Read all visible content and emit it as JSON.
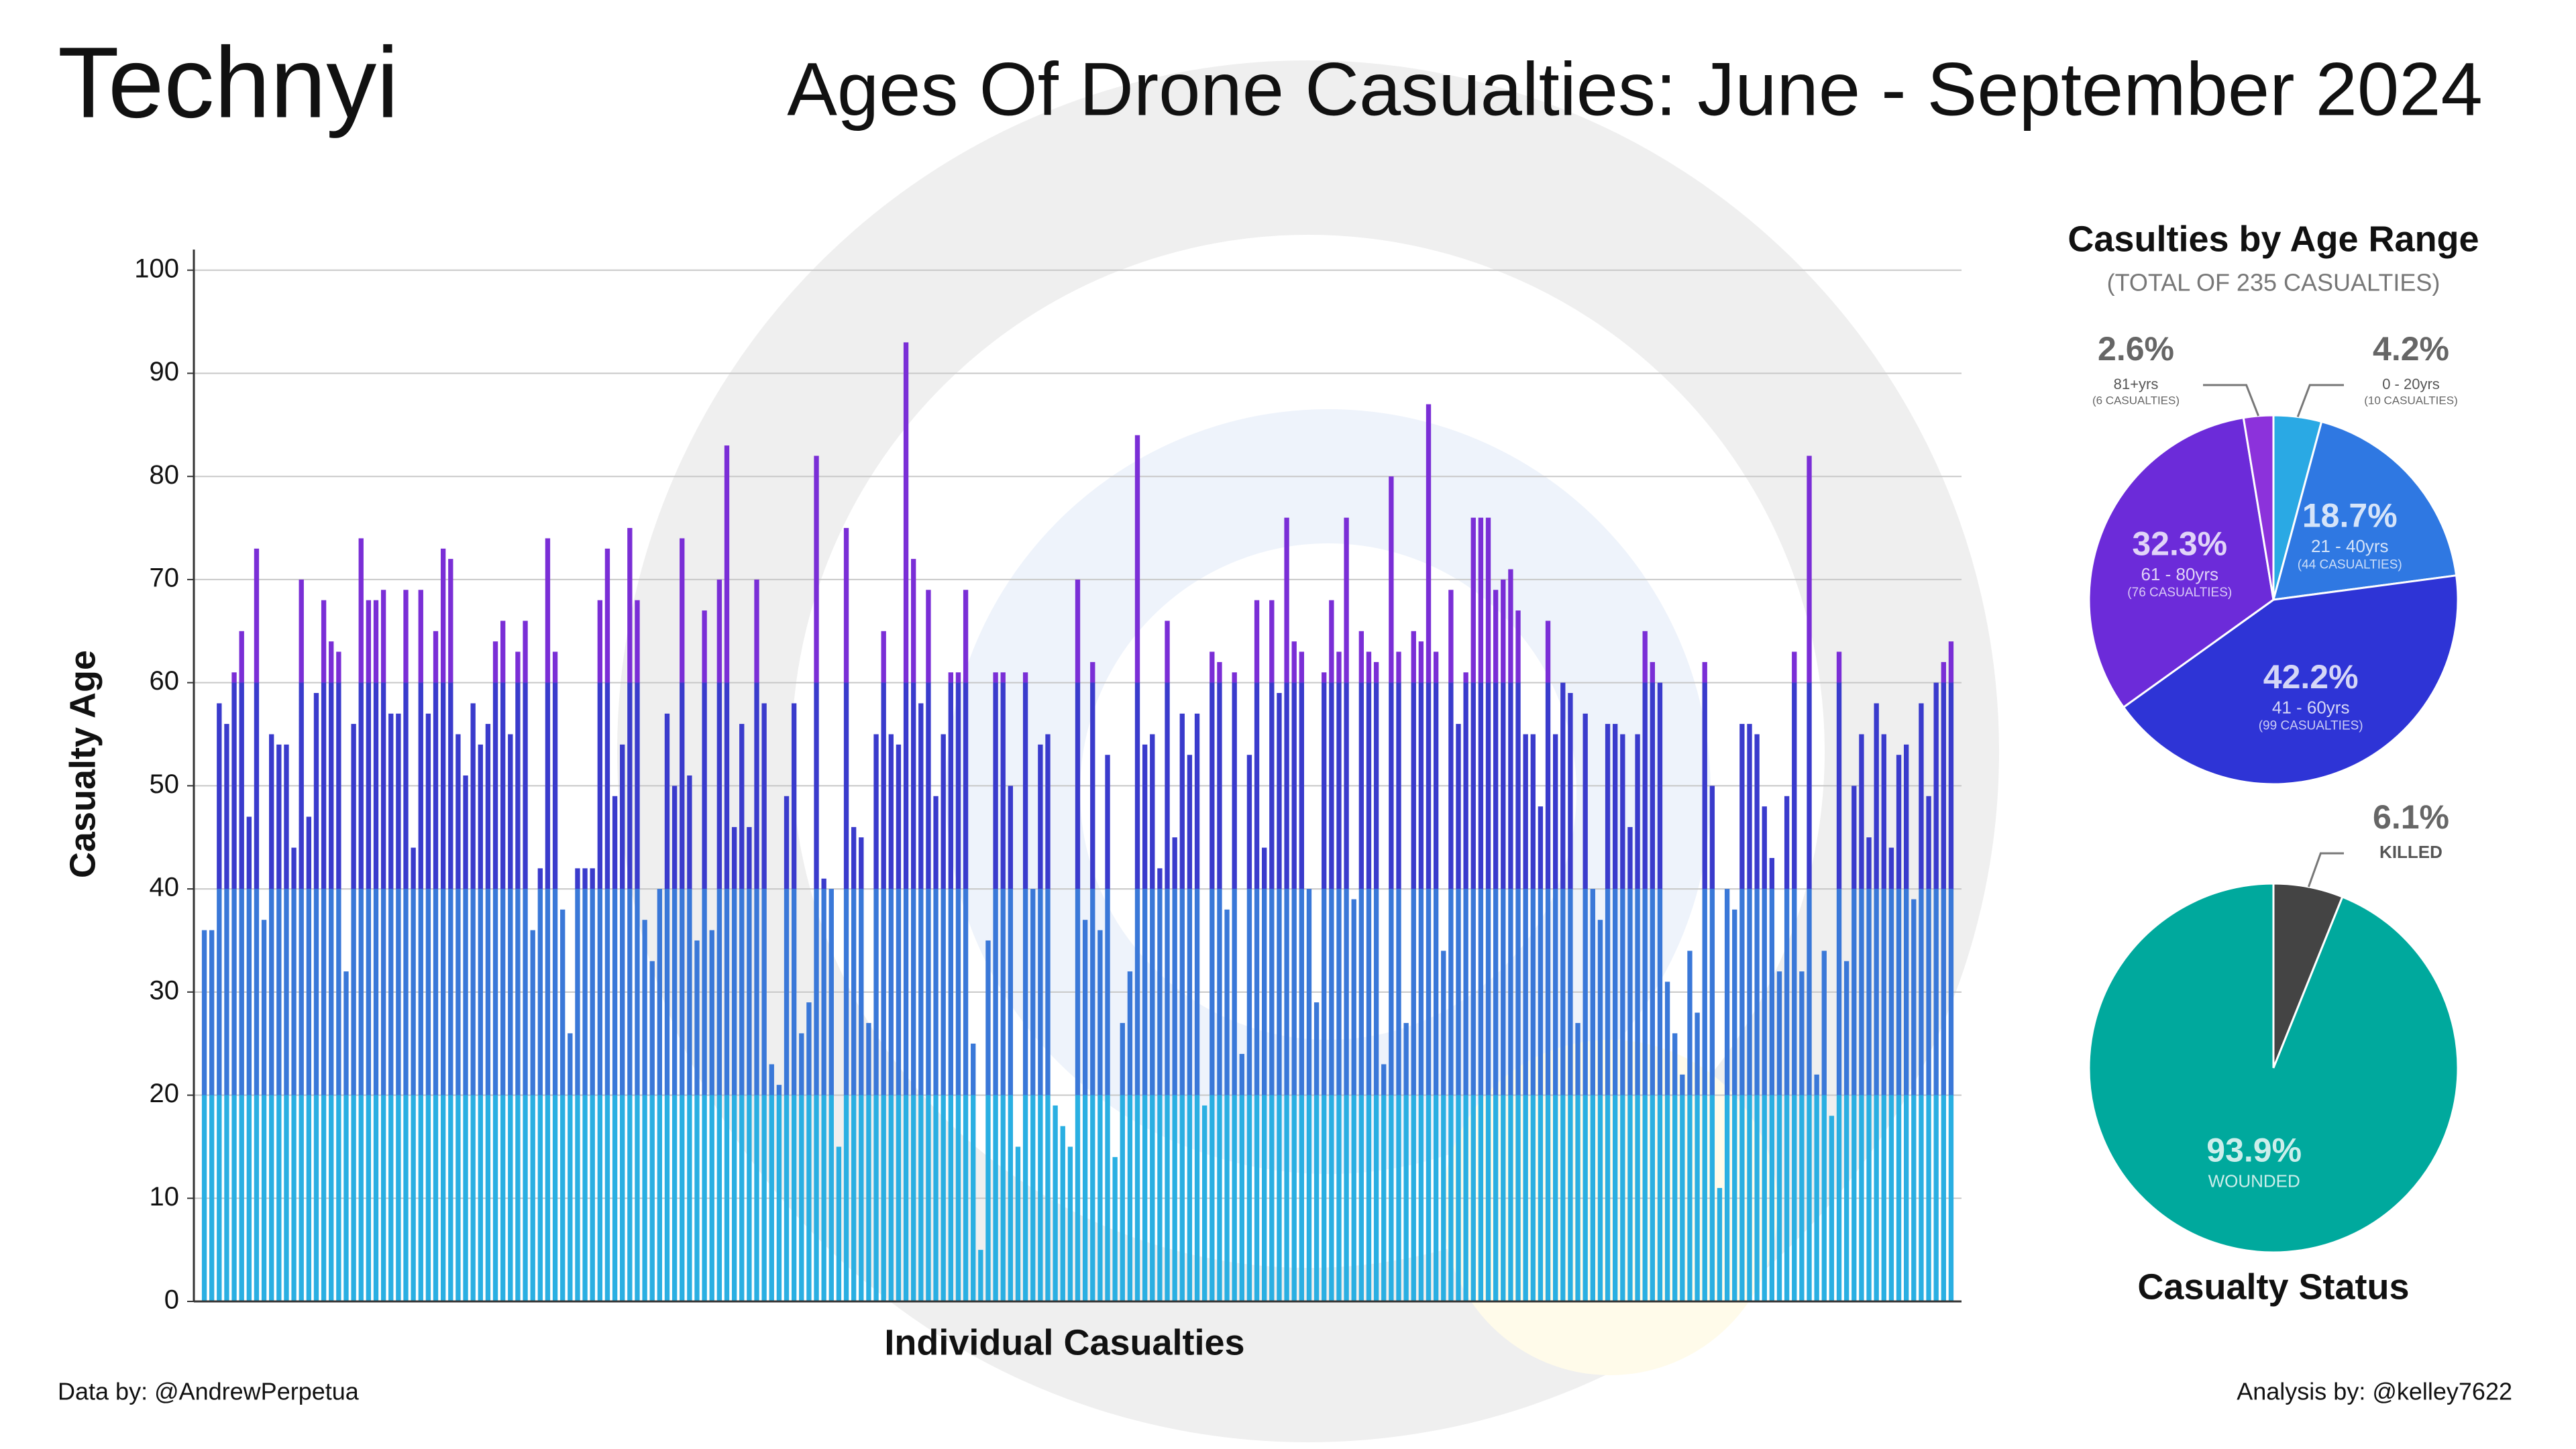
{
  "logo": "Technyi",
  "footer": {
    "left": "Data by: @AndrewPerpetua",
    "right": "Analysis by: @kelley7622"
  },
  "chart_data": [
    {
      "type": "bar",
      "title": "Ages Of Drone Casualties: June - September 2024",
      "ylabel": "Casualty Age",
      "xlabel": "Individual Casualties",
      "values": [
        36,
        36,
        58,
        56,
        61,
        65,
        47,
        73,
        37,
        55,
        54,
        54,
        44,
        70,
        47,
        59,
        68,
        64,
        63,
        32,
        56,
        74,
        68,
        68,
        69,
        57,
        57,
        69,
        44,
        69,
        57,
        65,
        73,
        72,
        55,
        51,
        58,
        54,
        56,
        64,
        66,
        55,
        63,
        66,
        36,
        42,
        74,
        63,
        38,
        26,
        42,
        42,
        42,
        68,
        73,
        49,
        54,
        75,
        68,
        37,
        33,
        40,
        57,
        50,
        74,
        51,
        35,
        67,
        36,
        70,
        83,
        46,
        56,
        46,
        70,
        58,
        23,
        21,
        49,
        58,
        26,
        29,
        82,
        41,
        40,
        15,
        75,
        46,
        45,
        27,
        55,
        65,
        55,
        54,
        93,
        72,
        58,
        69,
        49,
        55,
        61,
        61,
        69,
        25,
        5,
        35,
        61,
        61,
        50,
        15,
        61,
        40,
        54,
        55,
        19,
        17,
        15,
        70,
        37,
        62,
        36,
        53,
        14,
        27,
        32,
        84,
        54,
        55,
        42,
        66,
        45,
        57,
        53,
        57,
        19,
        63,
        62,
        38,
        61,
        24,
        53,
        68,
        44,
        68,
        59,
        76,
        64,
        63,
        40,
        29,
        61,
        68,
        63,
        76,
        39,
        65,
        63,
        62,
        23,
        80,
        63,
        27,
        65,
        64,
        87,
        63,
        34,
        69,
        56,
        61,
        76,
        76,
        76,
        69,
        70,
        71,
        67,
        55,
        55,
        48,
        66,
        55,
        60,
        59,
        27,
        57,
        40,
        37,
        56,
        56,
        55,
        46,
        55,
        65,
        62,
        60,
        31,
        26,
        22,
        34,
        28,
        62,
        50,
        11,
        40,
        38,
        56,
        56,
        55,
        48,
        43,
        32,
        49,
        63,
        32,
        82,
        22,
        34,
        18,
        63,
        33,
        50,
        55,
        45,
        58,
        55,
        44,
        53,
        54,
        39,
        58,
        49,
        60,
        62,
        64
      ],
      "ylim": [
        0,
        102
      ],
      "yticks": [
        0,
        10,
        20,
        30,
        40,
        50,
        60,
        70,
        80,
        90,
        100
      ],
      "grid": true,
      "band_colors": [
        "#2aafe2",
        "#3a78d8",
        "#3a3bcc",
        "#7a2ed6"
      ]
    },
    {
      "type": "pie",
      "title": "Casulties by Age Range",
      "subtitle": "(TOTAL OF 235 CASUALTIES)",
      "labels": [
        "0 - 20yrs",
        "21 - 40yrs",
        "41 - 60yrs",
        "61 - 80yrs",
        "81+yrs"
      ],
      "count_labels": [
        "(10 CASUALTIES)",
        "(44 CASUALTIES)",
        "(99 CASUALTIES)",
        "(76 CASUALTIES)",
        "(6 CASUALTIES)"
      ],
      "values": [
        4.2,
        18.7,
        42.2,
        32.3,
        2.6
      ],
      "value_labels": [
        "4.2%",
        "18.7%",
        "42.2%",
        "32.3%",
        "2.6%"
      ],
      "colors": [
        "#2aa9e4",
        "#2f78e2",
        "#2e34d6",
        "#6c2bd9",
        "#8c32db"
      ]
    },
    {
      "type": "pie",
      "title": "Casualty Status",
      "labels": [
        "KILLED",
        "WOUNDED"
      ],
      "values": [
        6.1,
        93.9
      ],
      "value_labels": [
        "6.1%",
        "93.9%"
      ],
      "colors": [
        "#444444",
        "#00a99d"
      ]
    }
  ]
}
